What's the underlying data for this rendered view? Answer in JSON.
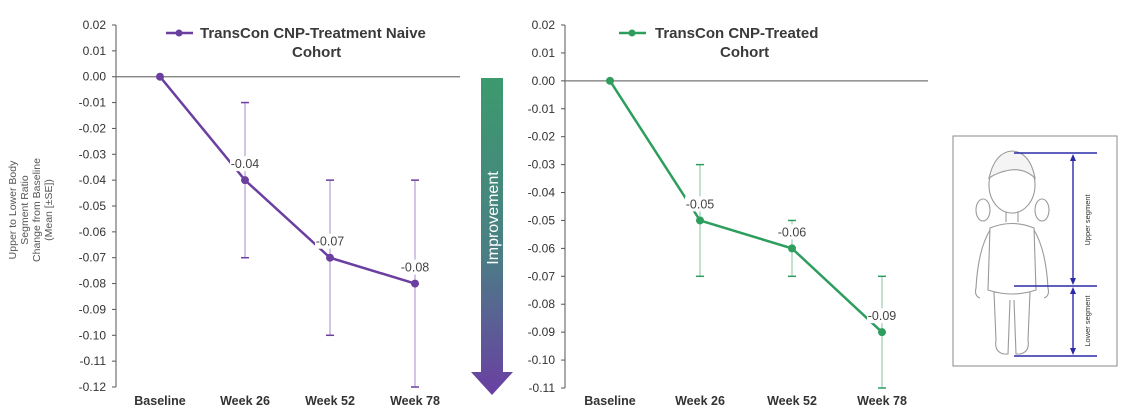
{
  "chart_data": [
    {
      "type": "line",
      "series": [
        {
          "name": "TransCon CNP-Treatment Naive Cohort",
          "legend_lines": [
            "TransCon CNP-Treatment Naive",
            "Cohort"
          ],
          "color": "#6b3fa0",
          "values": [
            0.0,
            -0.04,
            -0.07,
            -0.08
          ],
          "error_low": [
            null,
            -0.07,
            -0.1,
            -0.12
          ],
          "error_high": [
            null,
            -0.01,
            -0.04,
            -0.04
          ],
          "data_labels": [
            "",
            "-0.04",
            "-0.07",
            "-0.08"
          ]
        }
      ],
      "categories": [
        "Baseline",
        "Week 26",
        "Week 52",
        "Week 78"
      ],
      "ylabel_lines": [
        "Upper to Lower Body",
        "Segment Ratio",
        "Change from Baseline",
        "(Mean [±SE])"
      ],
      "ylim": [
        -0.12,
        0.02
      ],
      "yticks": [
        "0.02",
        "0.01",
        "0.00",
        "-0.01",
        "-0.02",
        "-0.03",
        "-0.04",
        "-0.05",
        "-0.06",
        "-0.07",
        "-0.08",
        "-0.09",
        "-0.10",
        "-0.11",
        "-0.12"
      ],
      "grid": false,
      "legend_position": "top"
    },
    {
      "type": "line",
      "series": [
        {
          "name": "TransCon CNP-Treated Cohort",
          "legend_lines": [
            "TransCon CNP-Treated",
            "Cohort"
          ],
          "color": "#2e9e5e",
          "values": [
            0.0,
            -0.05,
            -0.06,
            -0.09
          ],
          "error_low": [
            null,
            -0.07,
            -0.07,
            -0.11
          ],
          "error_high": [
            null,
            -0.03,
            -0.05,
            -0.07
          ],
          "data_labels": [
            "",
            "-0.05",
            "-0.06",
            "-0.09"
          ]
        }
      ],
      "categories": [
        "Baseline",
        "Week 26",
        "Week 52",
        "Week 78"
      ],
      "ylim": [
        -0.11,
        0.02
      ],
      "yticks": [
        "0.02",
        "0.01",
        "0.00",
        "-0.01",
        "-0.02",
        "-0.03",
        "-0.04",
        "-0.05",
        "-0.06",
        "-0.07",
        "-0.08",
        "-0.09",
        "-0.10",
        "-0.11"
      ],
      "grid": false,
      "legend_position": "top"
    }
  ],
  "arrow": {
    "label": "Improvement",
    "color_top": "#3c9a6e",
    "color_bottom": "#6a3fa3"
  },
  "figure": {
    "upper_label": "Upper segment",
    "lower_label": "Lower segment",
    "line_color": "#2a2aa8"
  }
}
